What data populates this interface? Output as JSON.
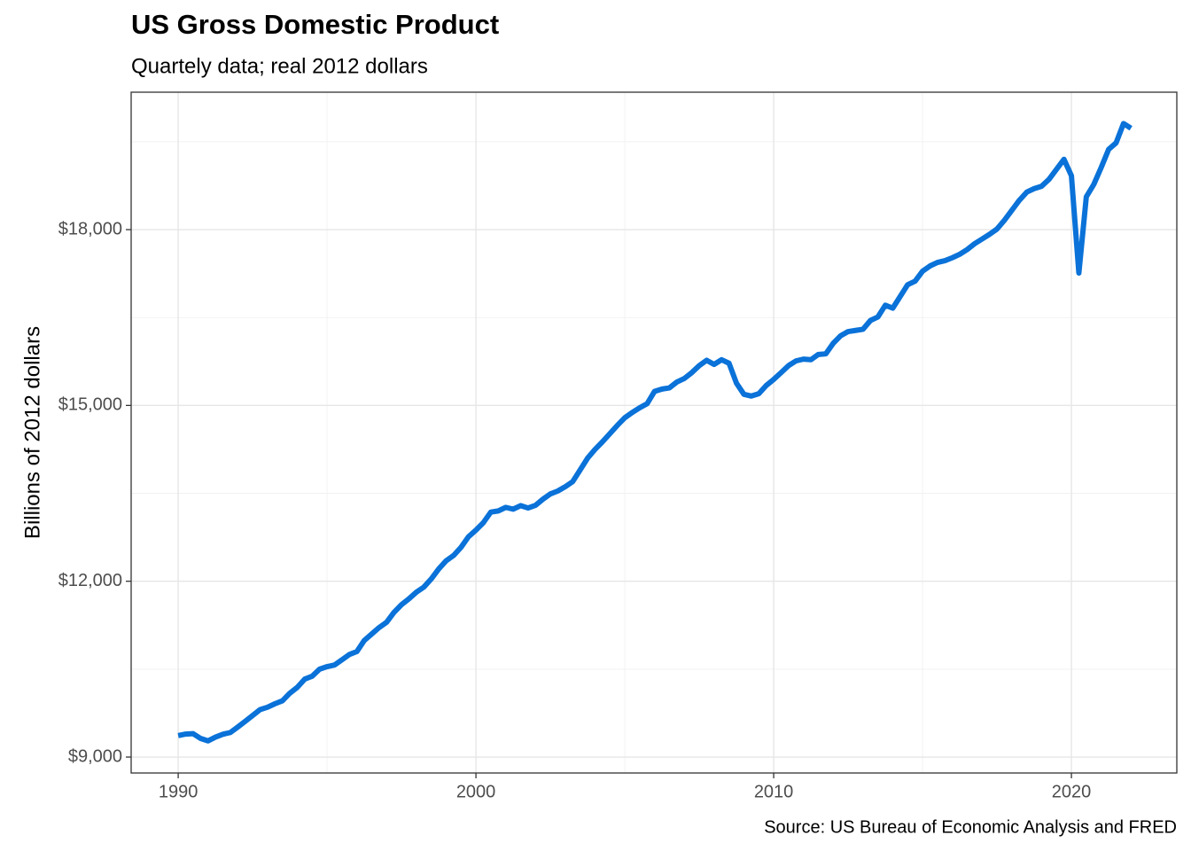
{
  "chart_data": {
    "type": "line",
    "title": "US Gross Domestic Product",
    "subtitle": "Quartely data; real 2012 dollars",
    "y_label": "Billions of 2012 dollars",
    "caption": "Source: US Bureau of Economic Analysis and FRED",
    "x": [
      1990,
      1990.25,
      1990.5,
      1990.75,
      1991,
      1991.25,
      1991.5,
      1991.75,
      1992,
      1992.25,
      1992.5,
      1992.75,
      1993,
      1993.25,
      1993.5,
      1993.75,
      1994,
      1994.25,
      1994.5,
      1994.75,
      1995,
      1995.25,
      1995.5,
      1995.75,
      1996,
      1996.25,
      1996.5,
      1996.75,
      1997,
      1997.25,
      1997.5,
      1997.75,
      1998,
      1998.25,
      1998.5,
      1998.75,
      1999,
      1999.25,
      1999.5,
      1999.75,
      2000,
      2000.25,
      2000.5,
      2000.75,
      2001,
      2001.25,
      2001.5,
      2001.75,
      2002,
      2002.25,
      2002.5,
      2002.75,
      2003,
      2003.25,
      2003.5,
      2003.75,
      2004,
      2004.25,
      2004.5,
      2004.75,
      2005,
      2005.25,
      2005.5,
      2005.75,
      2006,
      2006.25,
      2006.5,
      2006.75,
      2007,
      2007.25,
      2007.5,
      2007.75,
      2008,
      2008.25,
      2008.5,
      2008.75,
      2009,
      2009.25,
      2009.5,
      2009.75,
      2010,
      2010.25,
      2010.5,
      2010.75,
      2011,
      2011.25,
      2011.5,
      2011.75,
      2012,
      2012.25,
      2012.5,
      2012.75,
      2013,
      2013.25,
      2013.5,
      2013.75,
      2014,
      2014.25,
      2014.5,
      2014.75,
      2015,
      2015.25,
      2015.5,
      2015.75,
      2016,
      2016.25,
      2016.5,
      2016.75,
      2017,
      2017.25,
      2017.5,
      2017.75,
      2018,
      2018.25,
      2018.5,
      2018.75,
      2019,
      2019.25,
      2019.5,
      2019.75,
      2020,
      2020.25,
      2020.5,
      2020.75,
      2021,
      2021.25,
      2021.5,
      2021.75,
      2022
    ],
    "series": [
      {
        "name": "GDP",
        "color": "#0a72d8",
        "values": [
          9366,
          9392,
          9399,
          9318,
          9276,
          9340,
          9389,
          9418,
          9512,
          9610,
          9710,
          9810,
          9850,
          9910,
          9960,
          10090,
          10190,
          10330,
          10380,
          10500,
          10543,
          10570,
          10660,
          10750,
          10800,
          10990,
          11100,
          11210,
          11300,
          11470,
          11600,
          11700,
          11814,
          11900,
          12040,
          12210,
          12350,
          12440,
          12580,
          12760,
          12872,
          13000,
          13180,
          13200,
          13260,
          13230,
          13290,
          13250,
          13296,
          13400,
          13490,
          13540,
          13613,
          13700,
          13900,
          14100,
          14250,
          14380,
          14520,
          14660,
          14790,
          14880,
          14960,
          15030,
          15240,
          15280,
          15300,
          15400,
          15460,
          15560,
          15680,
          15770,
          15700,
          15780,
          15720,
          15380,
          15190,
          15160,
          15200,
          15340,
          15444,
          15560,
          15680,
          15760,
          15790,
          15780,
          15870,
          15880,
          16060,
          16190,
          16260,
          16280,
          16300,
          16450,
          16510,
          16710,
          16660,
          16860,
          17060,
          17120,
          17290,
          17380,
          17440,
          17470,
          17520,
          17580,
          17660,
          17760,
          17840,
          17920,
          18010,
          18160,
          18330,
          18500,
          18640,
          18700,
          18740,
          18860,
          19030,
          19200,
          18920,
          17260,
          18560,
          18770,
          19060,
          19370,
          19480,
          19810,
          19730
        ]
      }
    ],
    "xlim": [
      1988.42,
      2023.54
    ],
    "ylim": [
      8728,
      20345
    ],
    "xticks": [
      1990,
      2000,
      2010,
      2020
    ],
    "yticks": [
      {
        "value": 9000,
        "label": "$9,000"
      },
      {
        "value": 12000,
        "label": "$12,000"
      },
      {
        "value": 15000,
        "label": "$15,000"
      },
      {
        "value": 18000,
        "label": "$18,000"
      }
    ],
    "x_minor_grid": [
      1995,
      2005,
      2015
    ],
    "y_minor_grid": [
      10500,
      13500,
      16500,
      19500
    ],
    "grid": true
  }
}
